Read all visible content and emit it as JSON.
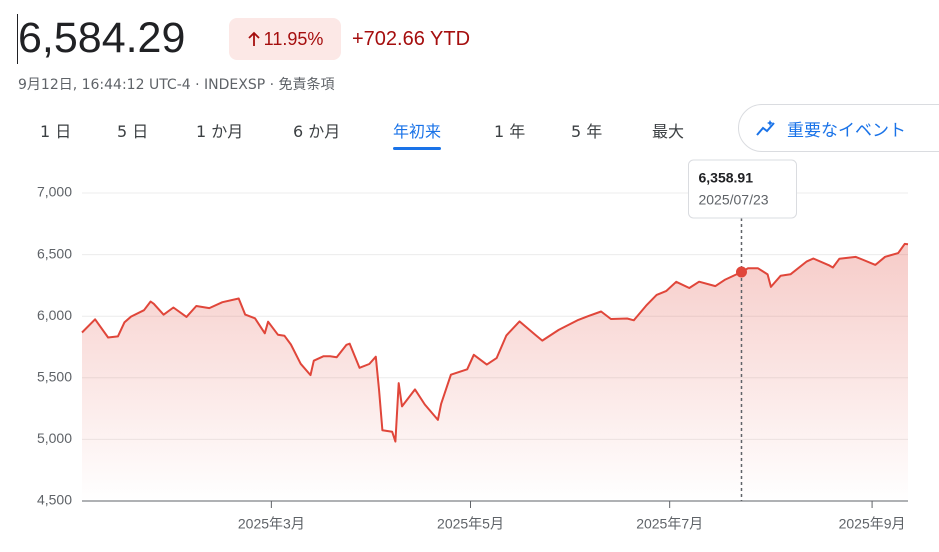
{
  "header": {
    "price": "6,584.29",
    "change_pct": "11.95%",
    "change_abs": "+702.66 YTD",
    "timestamp": "9月12日, 16:44:12 UTC-4",
    "exchange": "INDEXSP",
    "disclaimer": "免責条項"
  },
  "tabs": [
    {
      "label": "1 日",
      "selected": false
    },
    {
      "label": "5 日",
      "selected": false
    },
    {
      "label": "1 か月",
      "selected": false
    },
    {
      "label": "6 か月",
      "selected": false
    },
    {
      "label": "年初来",
      "selected": true
    },
    {
      "label": "1 年",
      "selected": false
    },
    {
      "label": "5 年",
      "selected": false
    },
    {
      "label": "最大",
      "selected": false
    }
  ],
  "events_button": "重要なイベント",
  "chart_data": {
    "type": "area",
    "color": "#e0463a",
    "grid": true,
    "x": [
      "2025-01-02",
      "2025-01-06",
      "2025-01-10",
      "2025-01-13",
      "2025-01-15",
      "2025-01-17",
      "2025-01-21",
      "2025-01-23",
      "2025-01-24",
      "2025-01-27",
      "2025-01-30",
      "2025-02-03",
      "2025-02-06",
      "2025-02-10",
      "2025-02-14",
      "2025-02-19",
      "2025-02-21",
      "2025-02-24",
      "2025-02-27",
      "2025-02-28",
      "2025-03-03",
      "2025-03-05",
      "2025-03-07",
      "2025-03-10",
      "2025-03-13",
      "2025-03-14",
      "2025-03-17",
      "2025-03-19",
      "2025-03-21",
      "2025-03-24",
      "2025-03-25",
      "2025-03-28",
      "2025-03-31",
      "2025-04-02",
      "2025-04-03",
      "2025-04-04",
      "2025-04-07",
      "2025-04-08",
      "2025-04-09",
      "2025-04-10",
      "2025-04-14",
      "2025-04-17",
      "2025-04-21",
      "2025-04-22",
      "2025-04-25",
      "2025-04-30",
      "2025-05-02",
      "2025-05-06",
      "2025-05-09",
      "2025-05-12",
      "2025-05-16",
      "2025-05-21",
      "2025-05-23",
      "2025-05-28",
      "2025-06-03",
      "2025-06-06",
      "2025-06-10",
      "2025-06-13",
      "2025-06-18",
      "2025-06-20",
      "2025-06-24",
      "2025-06-27",
      "2025-06-30",
      "2025-07-03",
      "2025-07-07",
      "2025-07-10",
      "2025-07-15",
      "2025-07-18",
      "2025-07-23",
      "2025-07-25",
      "2025-07-28",
      "2025-07-31",
      "2025-08-01",
      "2025-08-04",
      "2025-08-07",
      "2025-08-12",
      "2025-08-14",
      "2025-08-19",
      "2025-08-20",
      "2025-08-22",
      "2025-08-27",
      "2025-08-29",
      "2025-09-02",
      "2025-09-05",
      "2025-09-09",
      "2025-09-11",
      "2025-09-12"
    ],
    "values": [
      5868,
      5975,
      5827,
      5836,
      5950,
      5997,
      6049,
      6119,
      6101,
      6012,
      6071,
      5994,
      6083,
      6066,
      6114,
      6144,
      6013,
      5983,
      5861,
      5955,
      5850,
      5842,
      5770,
      5614,
      5522,
      5639,
      5675,
      5675,
      5667,
      5768,
      5777,
      5581,
      5612,
      5671,
      5397,
      5074,
      5062,
      4982,
      5457,
      5268,
      5406,
      5283,
      5158,
      5288,
      5525,
      5569,
      5687,
      5607,
      5660,
      5844,
      5958,
      5845,
      5802,
      5889,
      5970,
      6000,
      6038,
      5977,
      5981,
      5967,
      6092,
      6173,
      6205,
      6279,
      6229,
      6280,
      6244,
      6297,
      6358.91,
      6389,
      6390,
      6339,
      6238,
      6329,
      6340,
      6445,
      6468,
      6411,
      6395,
      6467,
      6481,
      6460,
      6416,
      6482,
      6512,
      6587,
      6584.29
    ],
    "xlim": [
      "2025-01-02",
      "2025-09-12"
    ],
    "xticks": [
      {
        "value": "2025-03-01",
        "label": "2025年3月"
      },
      {
        "value": "2025-05-01",
        "label": "2025年5月"
      },
      {
        "value": "2025-07-01",
        "label": "2025年7月"
      },
      {
        "value": "2025-09-01",
        "label": "2025年9月"
      }
    ],
    "ylim": [
      4500,
      7000
    ],
    "yticks": [
      {
        "value": 4500,
        "label": "4,500"
      },
      {
        "value": 5000,
        "label": "5,000"
      },
      {
        "value": 5500,
        "label": "5,500"
      },
      {
        "value": 6000,
        "label": "6,000"
      },
      {
        "value": 6500,
        "label": "6,500"
      },
      {
        "value": 7000,
        "label": "7,000"
      }
    ],
    "tooltip": {
      "label": "6,358.91",
      "date": "2025/07/23"
    }
  }
}
